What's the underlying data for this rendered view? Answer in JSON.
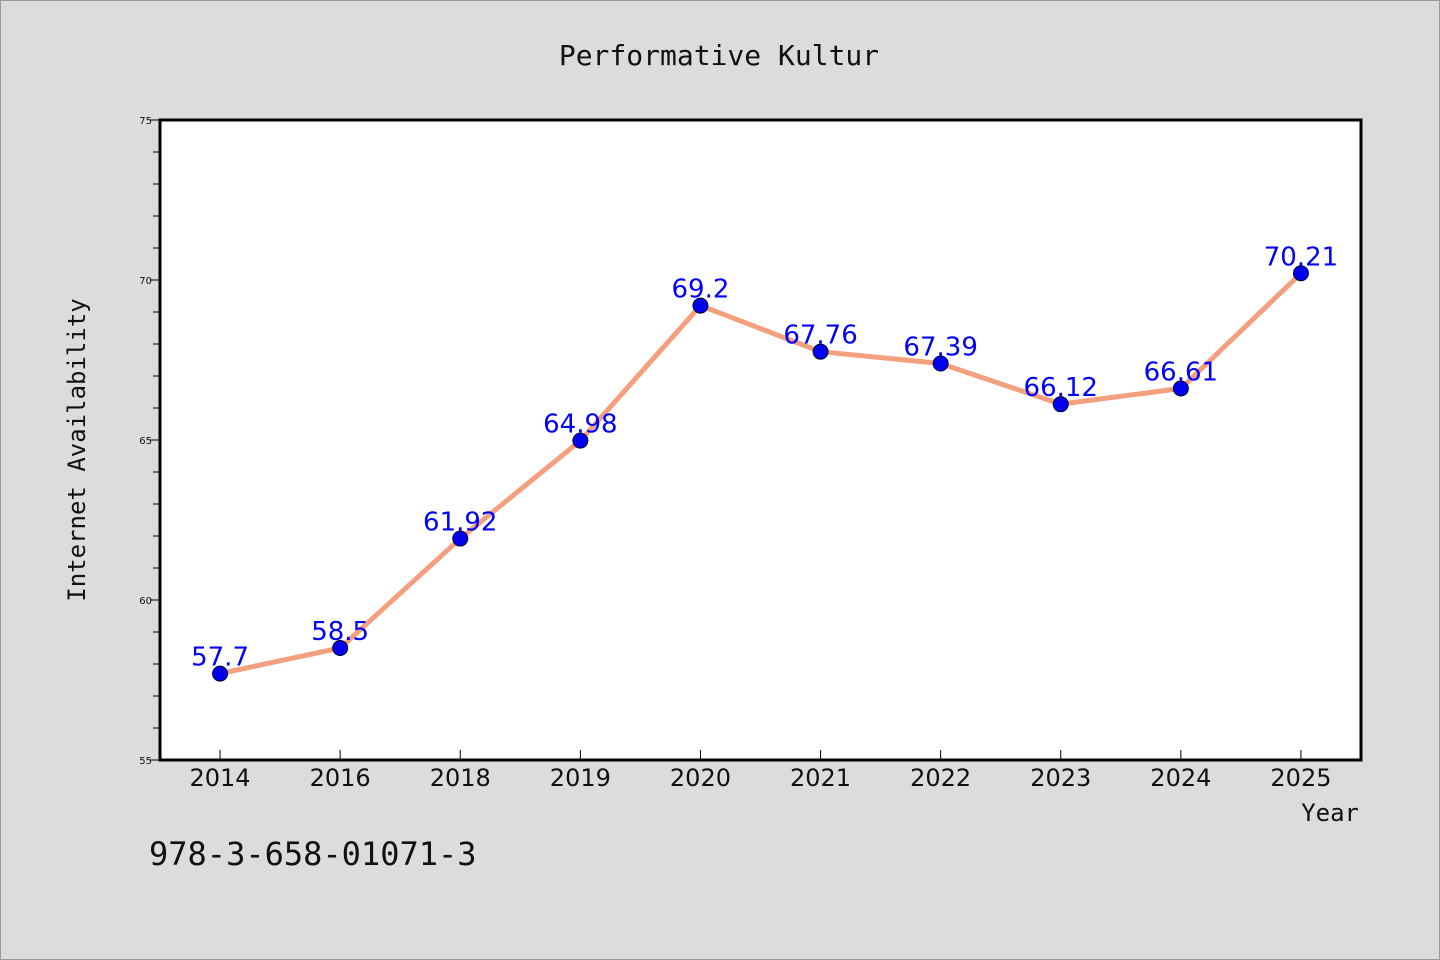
{
  "chart_data": {
    "type": "line",
    "title": "Performative Kultur",
    "xlabel": "Year",
    "ylabel": "Internet Availability",
    "categories": [
      "2014",
      "2016",
      "2018",
      "2019",
      "2020",
      "2021",
      "2022",
      "2023",
      "2024",
      "2025"
    ],
    "series": [
      {
        "values": [
          57.7,
          58.5,
          61.92,
          64.98,
          69.2,
          67.76,
          67.39,
          66.12,
          66.61,
          70.21
        ],
        "labels": [
          "57.7",
          "58.5",
          "61.92",
          "64.98",
          "69.2",
          "67.76",
          "67.39",
          "66.12",
          "66.61",
          "70.21"
        ]
      }
    ],
    "ylim": [
      55,
      75
    ],
    "yticks": [
      55,
      60,
      65,
      70,
      75
    ],
    "grid": false,
    "legend": "none",
    "colors": {
      "background": "#dcdcdc",
      "plot_background": "#ffffff",
      "line": "#f4a07e",
      "marker": "#0000ee",
      "data_label": "#0000ff",
      "text": "#111111"
    }
  },
  "footer": {
    "isbn": "978-3-658-01071-3"
  }
}
